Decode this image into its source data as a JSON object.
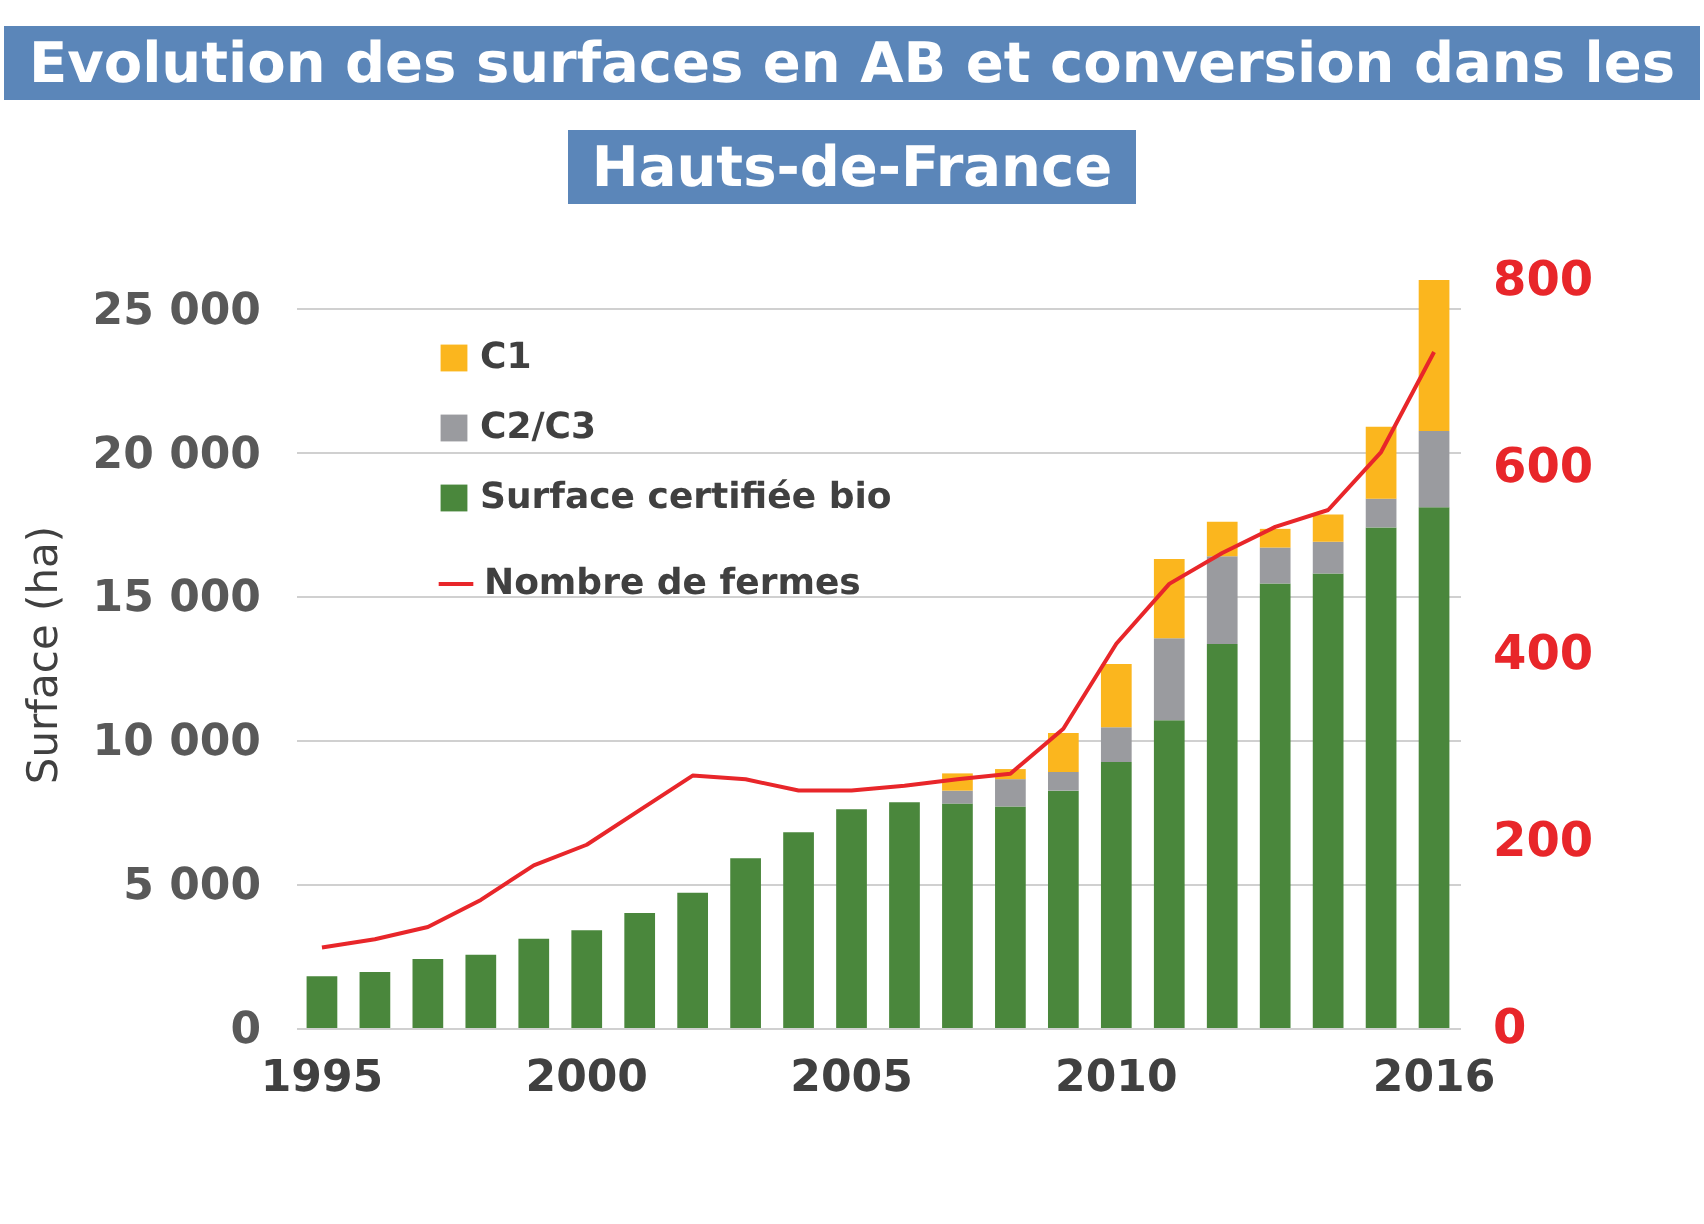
{
  "chart_data": {
    "type": "bar",
    "title": "Evolution des surfaces en AB et conversion dans les Hauts-de-France",
    "ylabel": "Surface (ha)",
    "categories": [
      "1995",
      null,
      null,
      null,
      null,
      "2000",
      null,
      null,
      null,
      null,
      "2005",
      null,
      null,
      null,
      null,
      "2010",
      null,
      null,
      null,
      null,
      null,
      "2016"
    ],
    "stacked": true,
    "series": [
      {
        "name": "Surface certifiée bio",
        "color": "#4a873c",
        "values": [
          1800,
          1950,
          2400,
          2550,
          3100,
          3400,
          4000,
          4700,
          5900,
          6800,
          7600,
          7850,
          7800,
          7700,
          8250,
          9250,
          10700,
          13350,
          15450,
          15800,
          17400,
          18100
        ]
      },
      {
        "name": "C2/C3",
        "color": "#9a9b9f",
        "values": [
          null,
          null,
          null,
          null,
          null,
          null,
          null,
          null,
          null,
          null,
          null,
          null,
          450,
          950,
          650,
          1200,
          2850,
          3050,
          1250,
          1100,
          1000,
          2650
        ]
      },
      {
        "name": "C1",
        "color": "#fbb61e",
        "values": [
          null,
          null,
          null,
          null,
          null,
          null,
          null,
          null,
          null,
          null,
          null,
          null,
          600,
          350,
          1350,
          2200,
          2750,
          1200,
          650,
          950,
          2500,
          5250
        ]
      },
      {
        "name": "Nombre de fermes",
        "type": "line",
        "axis": "y2",
        "color": "#e8262a",
        "values": [
          86,
          95,
          108,
          137,
          174,
          196,
          233,
          270,
          266,
          254,
          254,
          259,
          266,
          272,
          320,
          411,
          475,
          508,
          536,
          554,
          616,
          723
        ]
      }
    ],
    "ylim": [
      0,
      26000
    ],
    "yticks": [
      0,
      {
        "value": 5000,
        "label": "5 000"
      },
      {
        "value": 10000,
        "label": "10 000"
      },
      {
        "value": 15000,
        "label": "15 000"
      },
      {
        "value": 20000,
        "label": "20 000"
      },
      {
        "value": 25000,
        "label": "25 000"
      }
    ],
    "y2lim": [
      0,
      800
    ],
    "y2ticks": [
      0,
      200,
      400,
      600,
      800
    ],
    "grid": "y",
    "legend": "top left"
  }
}
